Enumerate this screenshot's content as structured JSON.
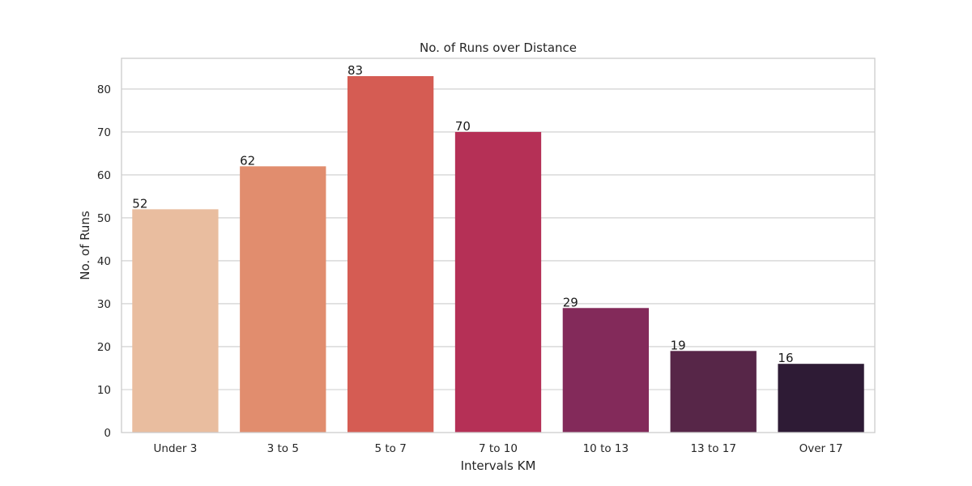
{
  "chart_data": {
    "type": "bar",
    "title": "No. of Runs over Distance",
    "xlabel": "Intervals KM",
    "ylabel": "No. of Runs",
    "categories": [
      "Under 3",
      "3 to 5",
      "5 to 7",
      "7 to 10",
      "10 to 13",
      "13 to 17",
      "Over 17"
    ],
    "values": [
      52,
      62,
      83,
      70,
      29,
      19,
      16
    ],
    "data_labels": [
      "52",
      "62",
      "83",
      "70",
      "29",
      "19",
      "16"
    ],
    "colors": [
      "#e9bd9f",
      "#e18d6e",
      "#d55c53",
      "#b53056",
      "#832a5a",
      "#572648",
      "#2e1b35"
    ],
    "ylim": [
      0,
      87.15
    ],
    "yticks": [
      0,
      10,
      20,
      30,
      40,
      50,
      60,
      70,
      80
    ],
    "grid": true,
    "legend": false
  }
}
